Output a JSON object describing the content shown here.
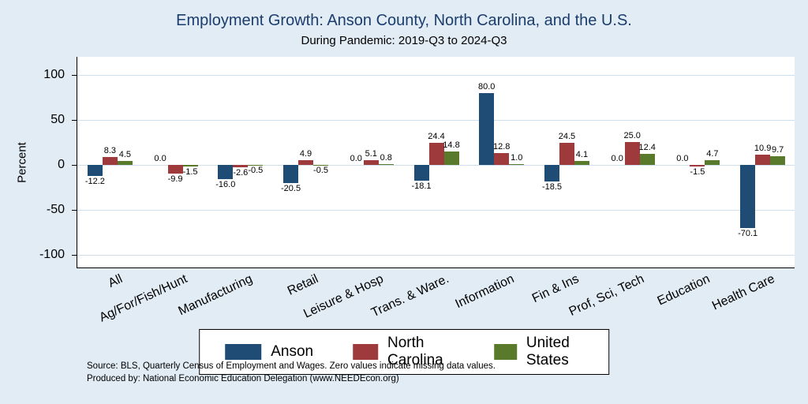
{
  "chart": {
    "title": "Employment Growth: Anson County, North Carolina, and the U.S.",
    "subtitle": "During Pandemic: 2019-Q3 to 2024-Q3",
    "ylabel": "Percent"
  },
  "chart_data": {
    "type": "bar",
    "title": "Employment Growth: Anson County, North Carolina, and the U.S.",
    "subtitle": "During Pandemic: 2019-Q3 to 2024-Q3",
    "xlabel": "",
    "ylabel": "Percent",
    "ylim": [
      -115,
      120
    ],
    "yticks": [
      100,
      50,
      0,
      -50,
      -100
    ],
    "grid": true,
    "legend_position": "bottom",
    "value_labels": true,
    "categories": [
      "All",
      "Ag/For/Fish/Hunt",
      "Manufacturing",
      "Retail",
      "Leisure & Hosp",
      "Trans. & Ware.",
      "Information",
      "Fin & Ins",
      "Prof, Sci, Tech",
      "Education",
      "Health Care"
    ],
    "series": [
      {
        "name": "Anson",
        "color": "#1e4c74",
        "values": [
          -12.2,
          0.0,
          -16.0,
          -20.5,
          0.0,
          -18.1,
          80.0,
          -18.5,
          0.0,
          0.0,
          -70.1
        ]
      },
      {
        "name": "North Carolina",
        "color": "#9e3a3c",
        "values": [
          8.3,
          -9.9,
          -2.6,
          4.9,
          5.1,
          24.4,
          12.8,
          24.5,
          25.0,
          -1.5,
          10.9
        ]
      },
      {
        "name": "United States",
        "color": "#5a7a2b",
        "values": [
          4.5,
          -1.5,
          -0.5,
          -0.5,
          0.8,
          14.8,
          1.0,
          4.1,
          12.4,
          4.7,
          9.7
        ]
      }
    ]
  },
  "notes": {
    "source": "Source: BLS, Quarterly Census of Employment and Wages. Zero values indicate missing data values.",
    "produced": "Produced by: National Economic Education Delegation (www.NEEDEcon.org)"
  },
  "colors": {
    "background": "#e2ecf5",
    "plot_background": "#ffffff",
    "title": "#1b3d6e",
    "gridline": "#cfe0ec"
  }
}
